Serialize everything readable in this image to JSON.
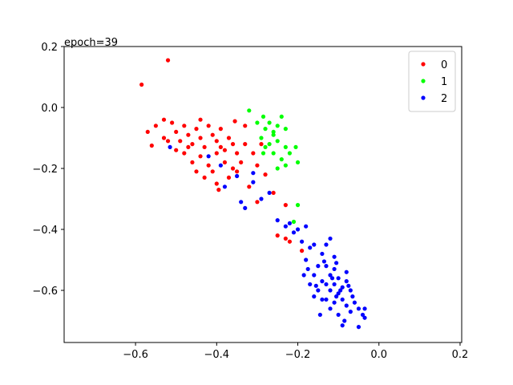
{
  "chart_data": {
    "type": "scatter",
    "annotation": "epoch=39",
    "xlim": [
      -0.776,
      0.204
    ],
    "ylim": [
      -0.771,
      0.2
    ],
    "xticks": [
      {
        "value": -0.6,
        "label": "−0.6"
      },
      {
        "value": -0.4,
        "label": "−0.4"
      },
      {
        "value": -0.2,
        "label": "−0.2"
      },
      {
        "value": 0,
        "label": "0.0"
      },
      0.2
    ],
    "yticks": [
      {
        "value": -0.6,
        "label": "−0.6"
      },
      {
        "value": -0.4,
        "label": "−0.4"
      },
      {
        "value": -0.2,
        "label": "−0.2"
      },
      {
        "value": 0,
        "label": "0.0"
      },
      0.2
    ],
    "legend": "upper right",
    "series": [
      {
        "name": "0",
        "color": "#ff0000",
        "x": [
          -0.52,
          -0.585,
          -0.53,
          -0.55,
          -0.57,
          -0.56,
          -0.53,
          -0.51,
          -0.5,
          -0.49,
          -0.48,
          -0.47,
          -0.46,
          -0.45,
          -0.44,
          -0.43,
          -0.42,
          -0.41,
          -0.4,
          -0.39,
          -0.38,
          -0.37,
          -0.36,
          -0.35,
          -0.34,
          -0.48,
          -0.46,
          -0.44,
          -0.42,
          -0.4,
          -0.38,
          -0.36,
          -0.41,
          -0.43,
          -0.4,
          -0.395,
          -0.37,
          -0.35,
          -0.33,
          -0.31,
          -0.3,
          -0.33,
          -0.29,
          -0.28,
          -0.26,
          -0.23,
          -0.25,
          -0.22,
          -0.23,
          -0.19,
          -0.45,
          -0.47,
          -0.5,
          -0.52,
          -0.39,
          -0.32,
          -0.3,
          -0.44,
          -0.355
        ],
        "y": [
          0.155,
          0.075,
          -0.04,
          -0.06,
          -0.08,
          -0.125,
          -0.1,
          -0.05,
          -0.08,
          -0.11,
          -0.06,
          -0.09,
          -0.12,
          -0.07,
          -0.1,
          -0.13,
          -0.06,
          -0.09,
          -0.11,
          -0.07,
          -0.14,
          -0.1,
          -0.12,
          -0.15,
          -0.18,
          -0.15,
          -0.18,
          -0.16,
          -0.19,
          -0.15,
          -0.18,
          -0.2,
          -0.21,
          -0.23,
          -0.25,
          -0.27,
          -0.23,
          -0.21,
          -0.12,
          -0.15,
          -0.19,
          -0.06,
          -0.12,
          -0.22,
          -0.28,
          -0.32,
          -0.42,
          -0.44,
          -0.43,
          -0.47,
          -0.21,
          -0.13,
          -0.14,
          -0.11,
          -0.13,
          -0.26,
          -0.31,
          -0.04,
          -0.045
        ]
      },
      {
        "name": "1",
        "color": "#00ff00",
        "x": [
          -0.32,
          -0.285,
          -0.28,
          -0.27,
          -0.26,
          -0.25,
          -0.24,
          -0.23,
          -0.29,
          -0.27,
          -0.25,
          -0.23,
          -0.22,
          -0.28,
          -0.26,
          -0.24,
          -0.23,
          -0.25,
          -0.285,
          -0.205,
          -0.2,
          -0.2,
          -0.21,
          -0.26,
          -0.3
        ],
        "y": [
          -0.01,
          -0.03,
          -0.07,
          -0.05,
          -0.08,
          -0.06,
          -0.03,
          -0.07,
          -0.1,
          -0.12,
          -0.11,
          -0.13,
          -0.15,
          -0.13,
          -0.15,
          -0.17,
          -0.19,
          -0.2,
          -0.15,
          -0.13,
          -0.18,
          -0.32,
          -0.375,
          -0.09,
          -0.05
        ]
      },
      {
        "name": "2",
        "color": "#0000ff",
        "x": [
          -0.515,
          -0.42,
          -0.39,
          -0.38,
          -0.35,
          -0.31,
          -0.31,
          -0.33,
          -0.34,
          -0.29,
          -0.27,
          -0.25,
          -0.23,
          -0.22,
          -0.21,
          -0.2,
          -0.18,
          -0.19,
          -0.17,
          -0.16,
          -0.18,
          -0.175,
          -0.16,
          -0.15,
          -0.14,
          -0.13,
          -0.12,
          -0.11,
          -0.1,
          -0.13,
          -0.12,
          -0.11,
          -0.1,
          -0.09,
          -0.08,
          -0.07,
          -0.09,
          -0.08,
          -0.07,
          -0.06,
          -0.05,
          -0.04,
          -0.035,
          -0.05,
          -0.11,
          -0.12,
          -0.1,
          -0.085,
          -0.09,
          -0.14,
          -0.15,
          -0.16,
          -0.17,
          -0.14,
          -0.13,
          -0.12,
          -0.13,
          -0.11,
          -0.145,
          -0.08,
          -0.095,
          -0.105,
          -0.065,
          -0.075,
          -0.115,
          -0.155,
          -0.185,
          -0.135,
          -0.105,
          -0.035
        ],
        "y": [
          -0.13,
          -0.16,
          -0.19,
          -0.26,
          -0.225,
          -0.215,
          -0.245,
          -0.33,
          -0.31,
          -0.3,
          -0.28,
          -0.37,
          -0.39,
          -0.38,
          -0.41,
          -0.4,
          -0.39,
          -0.44,
          -0.46,
          -0.45,
          -0.5,
          -0.53,
          -0.55,
          -0.52,
          -0.48,
          -0.52,
          -0.55,
          -0.53,
          -0.56,
          -0.58,
          -0.6,
          -0.58,
          -0.61,
          -0.59,
          -0.57,
          -0.6,
          -0.63,
          -0.65,
          -0.67,
          -0.64,
          -0.66,
          -0.68,
          -0.69,
          -0.72,
          -0.64,
          -0.66,
          -0.68,
          -0.7,
          -0.715,
          -0.63,
          -0.6,
          -0.62,
          -0.58,
          -0.57,
          -0.63,
          -0.43,
          -0.45,
          -0.49,
          -0.68,
          -0.54,
          -0.6,
          -0.62,
          -0.62,
          -0.585,
          -0.56,
          -0.585,
          -0.55,
          -0.505,
          -0.51,
          -0.66
        ]
      }
    ]
  }
}
